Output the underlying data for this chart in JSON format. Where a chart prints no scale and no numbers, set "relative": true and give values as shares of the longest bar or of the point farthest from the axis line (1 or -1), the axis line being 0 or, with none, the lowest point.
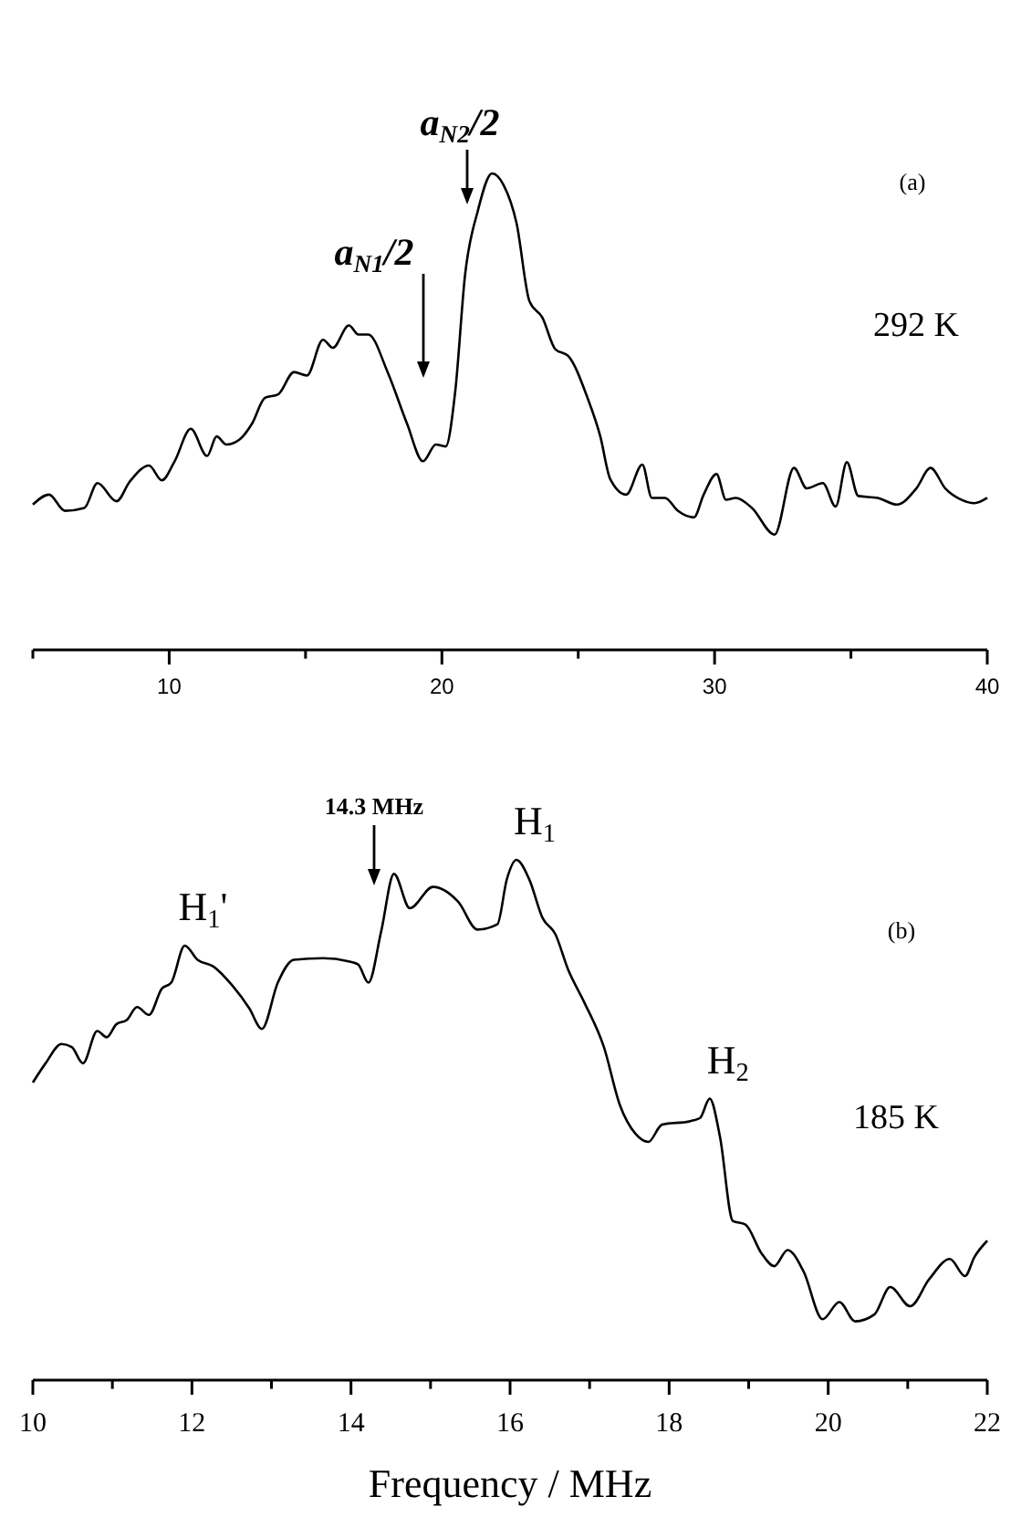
{
  "chart_data": [
    {
      "type": "line",
      "relative": true,
      "xlim": [
        5,
        40
      ],
      "xticks": [
        {
          "value": 5,
          "label": null
        },
        10,
        {
          "value": 15,
          "label": null
        },
        20,
        {
          "value": 25,
          "label": null
        },
        30,
        {
          "value": 35,
          "label": null
        },
        40
      ],
      "annotations": [
        "(a)",
        "292 K",
        "a$_{N1}$/2",
        "a$_{N2}$/2"
      ],
      "series": [
        {
          "color": "#000000",
          "x": [
            5,
            5.59,
            6.18,
            6.89,
            7.37,
            8.07,
            8.55,
            9.26,
            9.73,
            10.2,
            10.79,
            11.39,
            11.74,
            12.1,
            12.57,
            13.04,
            13.51,
            13.99,
            14.58,
            15.05,
            15.64,
            16,
            16.59,
            16.94,
            17.3,
            18.01,
            18.72,
            19.31,
            19.78,
            20.14,
            20.49,
            20.85,
            21.32,
            21.84,
            22.26,
            22.74,
            23.21,
            23.68,
            24.16,
            24.63,
            25.34,
            25.81,
            26.17,
            26.76,
            27.35,
            27.7,
            28.18,
            28.65,
            29.24,
            29.6,
            30.07,
            30.42,
            30.78,
            31.37,
            32.2,
            32.91,
            33.38,
            33.97,
            34.44,
            34.85,
            35.27,
            35.98,
            36.69,
            37.4,
            37.92,
            38.46,
            39.06,
            39.53,
            40
          ],
          "values": [
            0.305,
            0.326,
            0.292,
            0.298,
            0.35,
            0.312,
            0.353,
            0.387,
            0.356,
            0.396,
            0.464,
            0.407,
            0.448,
            0.431,
            0.441,
            0.475,
            0.529,
            0.536,
            0.583,
            0.576,
            0.651,
            0.634,
            0.681,
            0.662,
            0.662,
            0.583,
            0.475,
            0.396,
            0.431,
            0.427,
            0.543,
            0.787,
            0.922,
            1.0,
            0.976,
            0.895,
            0.732,
            0.698,
            0.631,
            0.617,
            0.529,
            0.448,
            0.359,
            0.326,
            0.389,
            0.319,
            0.319,
            0.292,
            0.278,
            0.326,
            0.369,
            0.315,
            0.319,
            0.298,
            0.242,
            0.382,
            0.339,
            0.35,
            0.301,
            0.394,
            0.323,
            0.319,
            0.305,
            0.339,
            0.382,
            0.339,
            0.315,
            0.308,
            0.319
          ]
        }
      ]
    },
    {
      "type": "line",
      "relative": true,
      "xlabel": "Frequency / MHz",
      "xlim": [
        10,
        22
      ],
      "xticks": [
        10,
        {
          "value": 11,
          "label": null
        },
        12,
        {
          "value": 13,
          "label": null
        },
        14,
        {
          "value": 15,
          "label": null
        },
        16,
        {
          "value": 17,
          "label": null
        },
        18,
        {
          "value": 19,
          "label": null
        },
        20,
        {
          "value": 21,
          "label": null
        },
        22
      ],
      "annotations": [
        "(b)",
        "185 K",
        "14.3 MHz",
        {
          "text": "H$_{1}$'",
          "x": 11.91,
          "y": 0.835
        },
        {
          "text": "H$_{1}$",
          "x": 16.08,
          "y": 1.0
        },
        {
          "text": "H$_{2}$",
          "x": 18.51,
          "y": 0.541
        }
      ],
      "series": [
        {
          "color": "#000000",
          "x": [
            10,
            10.16,
            10.36,
            10.49,
            10.63,
            10.81,
            10.93,
            11.05,
            11.18,
            11.31,
            11.46,
            11.62,
            11.74,
            11.91,
            12.07,
            12.27,
            12.51,
            12.72,
            12.88,
            13.08,
            13.28,
            13.65,
            13.97,
            14.09,
            14.22,
            14.38,
            14.54,
            14.74,
            15.03,
            15.35,
            15.59,
            15.84,
            15.96,
            16.08,
            16.24,
            16.41,
            16.57,
            16.73,
            16.93,
            17.18,
            17.38,
            17.58,
            17.74,
            17.91,
            18.27,
            18.39,
            18.51,
            18.64,
            18.8,
            18.96,
            19.16,
            19.32,
            19.49,
            19.69,
            19.93,
            20.14,
            20.34,
            20.58,
            20.78,
            21.03,
            21.27,
            21.53,
            21.72,
            21.84,
            22
          ],
          "values": [
            0.572,
            0.609,
            0.646,
            0.64,
            0.609,
            0.671,
            0.659,
            0.684,
            0.692,
            0.717,
            0.702,
            0.752,
            0.764,
            0.835,
            0.808,
            0.795,
            0.758,
            0.715,
            0.675,
            0.764,
            0.808,
            0.811,
            0.805,
            0.799,
            0.764,
            0.863,
            0.973,
            0.907,
            0.948,
            0.919,
            0.866,
            0.876,
            0.963,
            1.0,
            0.963,
            0.888,
            0.857,
            0.789,
            0.727,
            0.64,
            0.529,
            0.473,
            0.458,
            0.491,
            0.498,
            0.504,
            0.541,
            0.467,
            0.306,
            0.299,
            0.244,
            0.219,
            0.25,
            0.209,
            0.117,
            0.15,
            0.113,
            0.126,
            0.179,
            0.142,
            0.194,
            0.233,
            0.2,
            0.237,
            0.268
          ]
        }
      ]
    }
  ]
}
